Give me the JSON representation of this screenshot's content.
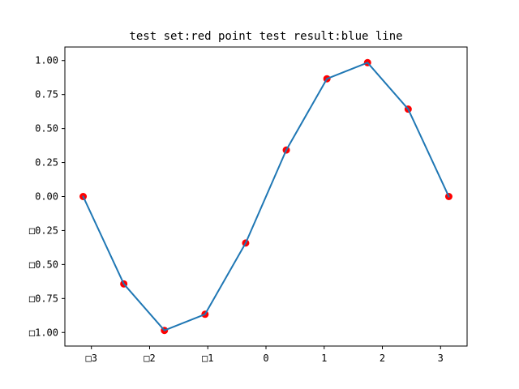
{
  "chart_data": {
    "type": "scatter",
    "title": "test set:red point   test result:blue line",
    "xlabel": "",
    "ylabel": "",
    "xlim": [
      -3.4558,
      3.4558
    ],
    "ylim": [
      -1.0998,
      1.0998
    ],
    "xticks": [
      -3,
      -2,
      -1,
      0,
      1,
      2,
      3
    ],
    "xtick_labels": [
      "□3",
      "□2",
      "□1",
      "0",
      "1",
      "2",
      "3"
    ],
    "yticks": [
      1.0,
      0.75,
      0.5,
      0.25,
      0.0,
      -0.25,
      -0.5,
      -0.75,
      -1.0
    ],
    "ytick_labels": [
      "1.00",
      "0.75",
      "0.50",
      "0.25",
      "0.00",
      "□0.25",
      "□0.50",
      "□0.75",
      "□1.00"
    ],
    "grid": false,
    "series": [
      {
        "kind": "scatter",
        "color": "#ff0000",
        "x": [
          -3.1416,
          -2.4435,
          -1.7453,
          -1.0472,
          -0.3491,
          0.3491,
          1.0472,
          1.7453,
          2.4435,
          3.1416
        ],
        "y": [
          0.0,
          -0.6428,
          -0.9848,
          -0.866,
          -0.342,
          0.342,
          0.866,
          0.9848,
          0.6428,
          0.0
        ]
      },
      {
        "kind": "line",
        "color": "#1f77b4",
        "x": [
          -3.1416,
          -2.4435,
          -1.7453,
          -1.0472,
          -0.3491,
          0.3491,
          1.0472,
          1.7453,
          2.4435,
          3.1416
        ],
        "y": [
          0.0,
          -0.6428,
          -0.9848,
          -0.866,
          -0.342,
          0.342,
          0.866,
          0.9848,
          0.6428,
          0.0
        ]
      }
    ]
  }
}
